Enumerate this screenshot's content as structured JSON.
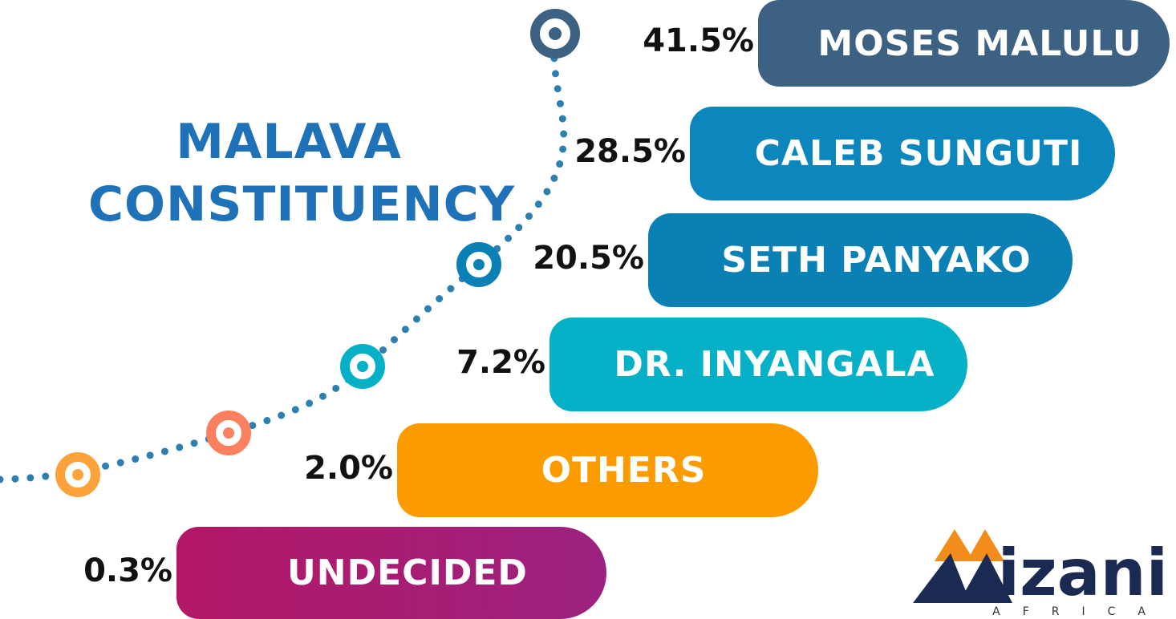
{
  "title": "MALAVA CONSTITUENCY",
  "candidates": [
    {
      "name": "MOSES MALULU",
      "value": "41.5%",
      "color": "#3d6183"
    },
    {
      "name": "CALEB SUNGUTI",
      "value": "28.5%",
      "color": "#0b87bd"
    },
    {
      "name": "SETH PANYAKO",
      "value": "20.5%",
      "color": "#0a80b5"
    },
    {
      "name": "DR. INYANGALA",
      "value": "7.2%",
      "color": "#06b0c6"
    },
    {
      "name": "OTHERS",
      "value": "2.0%",
      "color": "#fb9b00"
    },
    {
      "name": "UNDECIDED",
      "value": "0.3%",
      "color": "#b31866"
    }
  ],
  "logo": {
    "name": "izani",
    "tagline": "AFRICA"
  }
}
